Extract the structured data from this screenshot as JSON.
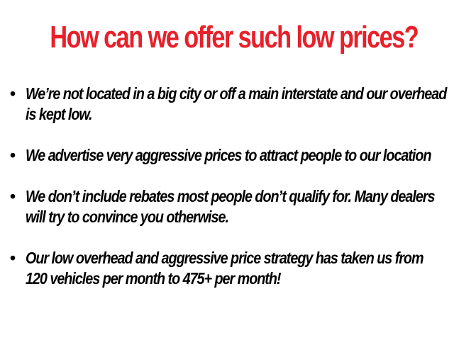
{
  "title": "How can we offer such low prices?",
  "bullets": [
    "We’re not located in a big city or off a main interstate and our overhead is kept low.",
    "We advertise very aggressive prices to attract people to our location",
    "We don’t include rebates most people don’t qualify for. Many dealers will try to convince you otherwise.",
    "Our low overhead and aggressive price strategy has taken us from 120 vehicles per month to 475+ per month!"
  ],
  "colors": {
    "title": "#e8202a",
    "text": "#000000"
  }
}
